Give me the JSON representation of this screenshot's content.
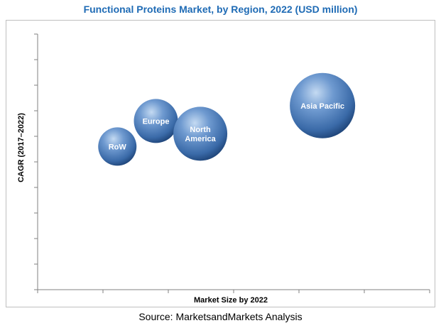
{
  "title": "Functional Proteins Market, by Region, 2022 (USD million)",
  "source": "Source: MarketsandMarkets Analysis",
  "chart_data": {
    "type": "bubble",
    "xlabel": "Market Size by 2022",
    "ylabel": "CAGR (2017–2022)",
    "xlim": [
      0,
      6
    ],
    "ylim": [
      0,
      10
    ],
    "x_ticks": 6,
    "y_ticks": 10,
    "grid": false,
    "series": [
      {
        "name": "RoW",
        "label_lines": [
          "RoW"
        ],
        "x": 1.22,
        "y": 5.6,
        "size": 27
      },
      {
        "name": "Europe",
        "label_lines": [
          "Europe"
        ],
        "x": 1.81,
        "y": 6.6,
        "size": 31
      },
      {
        "name": "North America",
        "label_lines": [
          "North",
          "America"
        ],
        "x": 2.49,
        "y": 6.1,
        "size": 38
      },
      {
        "name": "Asia Pacific",
        "label_lines": [
          "Asia Pacific"
        ],
        "x": 4.36,
        "y": 7.2,
        "size": 46
      }
    ],
    "colors": {
      "bubble_highlight": "#b8d0ec",
      "bubble_mid": "#4f7fbd",
      "bubble_dark": "#173a6b",
      "axis": "#808080",
      "title": "#1f6bb5"
    }
  }
}
